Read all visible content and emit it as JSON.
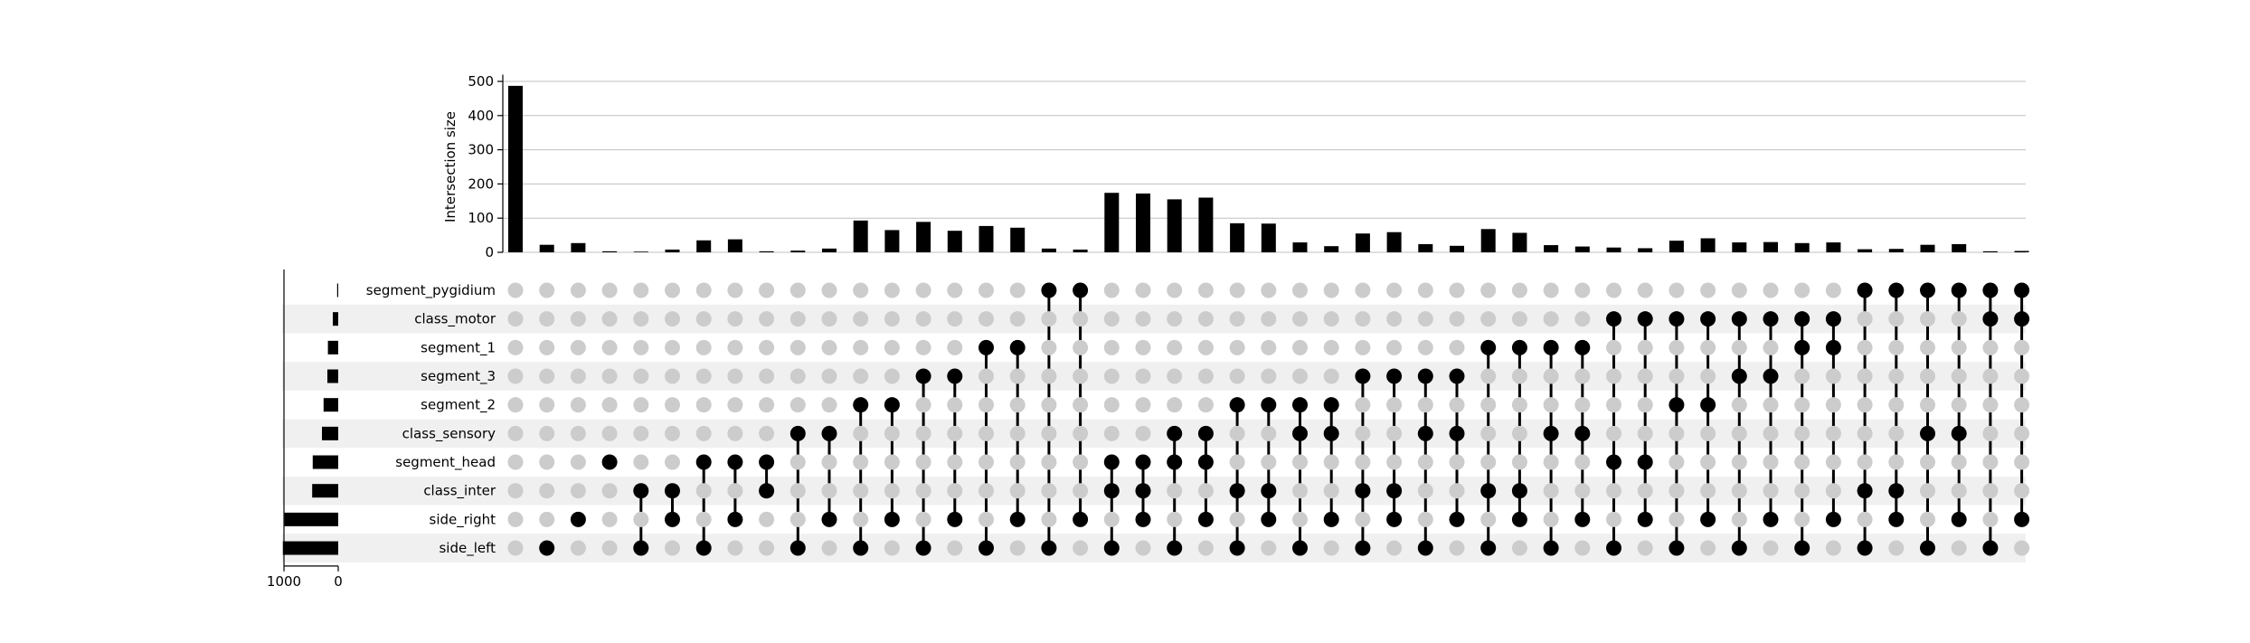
{
  "chart_data": {
    "type": "upset",
    "ylabel": "Intersection size",
    "yticks": [
      0,
      100,
      200,
      300,
      400,
      500
    ],
    "ylim": [
      0,
      520
    ],
    "grid": true,
    "set_size_ticks": [
      1000,
      0
    ],
    "set_size_lim": [
      0,
      1000
    ],
    "colors": {
      "bar": "#000000",
      "dot_on": "#000000",
      "dot_off": "#cccccc",
      "row_shade": "#f0f0f0",
      "grid": "#c0c0c0"
    },
    "sets": [
      {
        "name": "segment_pygidium",
        "size": 20
      },
      {
        "name": "class_motor",
        "size": 100
      },
      {
        "name": "segment_1",
        "size": 190
      },
      {
        "name": "segment_3",
        "size": 200
      },
      {
        "name": "segment_2",
        "size": 270
      },
      {
        "name": "class_sensory",
        "size": 300
      },
      {
        "name": "segment_head",
        "size": 470
      },
      {
        "name": "class_inter",
        "size": 480
      },
      {
        "name": "side_right",
        "size": 990
      },
      {
        "name": "side_left",
        "size": 1020
      }
    ],
    "intersections": [
      {
        "sets": [],
        "value": 487
      },
      {
        "sets": [
          "side_left"
        ],
        "value": 22
      },
      {
        "sets": [
          "side_right"
        ],
        "value": 27
      },
      {
        "sets": [
          "segment_head"
        ],
        "value": 3
      },
      {
        "sets": [
          "class_inter",
          "side_left"
        ],
        "value": 2
      },
      {
        "sets": [
          "class_inter",
          "side_right"
        ],
        "value": 8
      },
      {
        "sets": [
          "segment_head",
          "side_left"
        ],
        "value": 35
      },
      {
        "sets": [
          "segment_head",
          "side_right"
        ],
        "value": 38
      },
      {
        "sets": [
          "segment_head",
          "class_inter"
        ],
        "value": 3
      },
      {
        "sets": [
          "class_sensory",
          "side_left"
        ],
        "value": 5
      },
      {
        "sets": [
          "class_sensory",
          "side_right"
        ],
        "value": 11
      },
      {
        "sets": [
          "segment_2",
          "side_left"
        ],
        "value": 93
      },
      {
        "sets": [
          "segment_2",
          "side_right"
        ],
        "value": 65
      },
      {
        "sets": [
          "segment_3",
          "side_left"
        ],
        "value": 89
      },
      {
        "sets": [
          "segment_3",
          "side_right"
        ],
        "value": 63
      },
      {
        "sets": [
          "segment_1",
          "side_left"
        ],
        "value": 77
      },
      {
        "sets": [
          "segment_1",
          "side_right"
        ],
        "value": 72
      },
      {
        "sets": [
          "segment_pygidium",
          "side_left"
        ],
        "value": 11
      },
      {
        "sets": [
          "segment_pygidium",
          "side_right"
        ],
        "value": 8
      },
      {
        "sets": [
          "segment_head",
          "class_inter",
          "side_left"
        ],
        "value": 174
      },
      {
        "sets": [
          "segment_head",
          "class_inter",
          "side_right"
        ],
        "value": 172
      },
      {
        "sets": [
          "class_sensory",
          "segment_head",
          "side_left"
        ],
        "value": 155
      },
      {
        "sets": [
          "class_sensory",
          "segment_head",
          "side_right"
        ],
        "value": 160
      },
      {
        "sets": [
          "segment_2",
          "class_inter",
          "side_left"
        ],
        "value": 85
      },
      {
        "sets": [
          "segment_2",
          "class_inter",
          "side_right"
        ],
        "value": 84
      },
      {
        "sets": [
          "segment_2",
          "class_sensory",
          "side_left"
        ],
        "value": 29
      },
      {
        "sets": [
          "segment_2",
          "class_sensory",
          "side_right"
        ],
        "value": 18
      },
      {
        "sets": [
          "segment_3",
          "class_inter",
          "side_left"
        ],
        "value": 55
      },
      {
        "sets": [
          "segment_3",
          "class_inter",
          "side_right"
        ],
        "value": 59
      },
      {
        "sets": [
          "segment_3",
          "class_sensory",
          "side_left"
        ],
        "value": 24
      },
      {
        "sets": [
          "segment_3",
          "class_sensory",
          "side_right"
        ],
        "value": 19
      },
      {
        "sets": [
          "segment_1",
          "class_inter",
          "side_left"
        ],
        "value": 68
      },
      {
        "sets": [
          "segment_1",
          "class_inter",
          "side_right"
        ],
        "value": 57
      },
      {
        "sets": [
          "segment_1",
          "class_sensory",
          "side_left"
        ],
        "value": 21
      },
      {
        "sets": [
          "segment_1",
          "class_sensory",
          "side_right"
        ],
        "value": 17
      },
      {
        "sets": [
          "class_motor",
          "segment_head",
          "side_left"
        ],
        "value": 14
      },
      {
        "sets": [
          "class_motor",
          "segment_head",
          "side_right"
        ],
        "value": 12
      },
      {
        "sets": [
          "class_motor",
          "segment_2",
          "side_left"
        ],
        "value": 34
      },
      {
        "sets": [
          "class_motor",
          "segment_2",
          "side_right"
        ],
        "value": 41
      },
      {
        "sets": [
          "class_motor",
          "segment_3",
          "side_left"
        ],
        "value": 29
      },
      {
        "sets": [
          "class_motor",
          "segment_3",
          "side_right"
        ],
        "value": 30
      },
      {
        "sets": [
          "class_motor",
          "segment_1",
          "side_left"
        ],
        "value": 27
      },
      {
        "sets": [
          "class_motor",
          "segment_1",
          "side_right"
        ],
        "value": 29
      },
      {
        "sets": [
          "segment_pygidium",
          "class_inter",
          "side_left"
        ],
        "value": 9
      },
      {
        "sets": [
          "segment_pygidium",
          "class_inter",
          "side_right"
        ],
        "value": 10
      },
      {
        "sets": [
          "segment_pygidium",
          "class_sensory",
          "side_left"
        ],
        "value": 22
      },
      {
        "sets": [
          "segment_pygidium",
          "class_sensory",
          "side_right"
        ],
        "value": 24
      },
      {
        "sets": [
          "segment_pygidium",
          "class_motor",
          "side_left"
        ],
        "value": 3
      },
      {
        "sets": [
          "segment_pygidium",
          "class_motor",
          "side_right"
        ],
        "value": 4
      }
    ]
  }
}
